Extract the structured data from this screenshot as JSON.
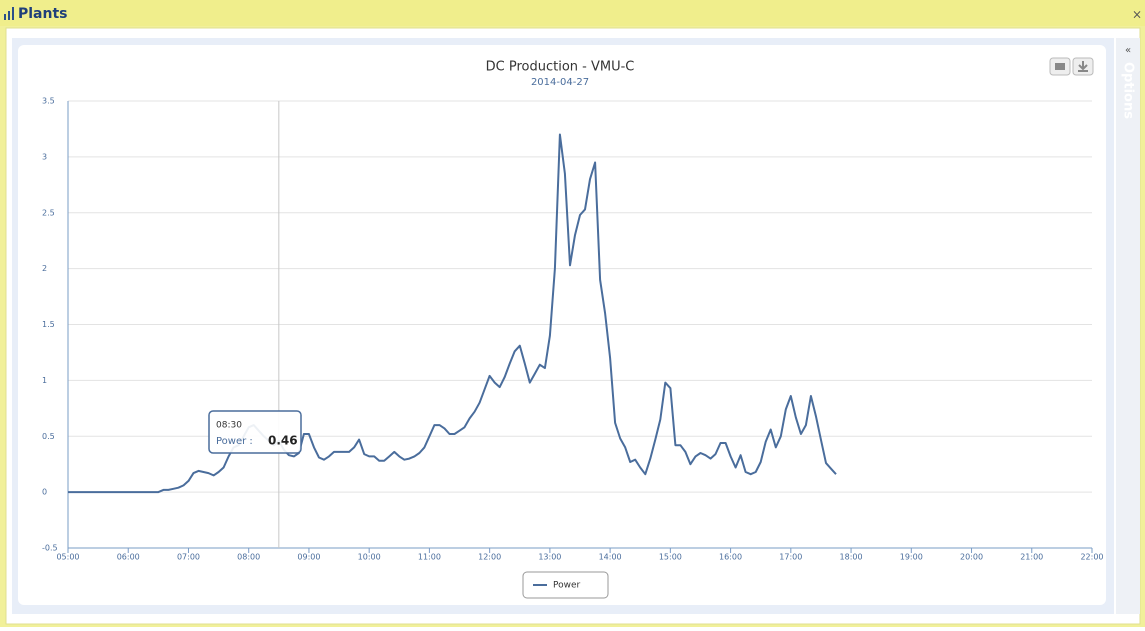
{
  "panel": {
    "title": "Plants",
    "close": "×"
  },
  "sidebar": {
    "label": "Options",
    "toggle": "«"
  },
  "chart_data": {
    "type": "line",
    "title": "DC Production - VMU-C",
    "subtitle": "2014-04-27",
    "x": [
      "05:00",
      "05:05",
      "05:10",
      "05:15",
      "05:20",
      "05:25",
      "05:30",
      "05:35",
      "05:40",
      "05:45",
      "05:50",
      "05:55",
      "06:00",
      "06:05",
      "06:10",
      "06:15",
      "06:20",
      "06:25",
      "06:30",
      "06:35",
      "06:40",
      "06:45",
      "06:50",
      "06:55",
      "07:00",
      "07:05",
      "07:10",
      "07:15",
      "07:20",
      "07:25",
      "07:30",
      "07:35",
      "07:40",
      "07:45",
      "07:50",
      "07:55",
      "08:00",
      "08:05",
      "08:10",
      "08:15",
      "08:20",
      "08:25",
      "08:30",
      "08:35",
      "08:40",
      "08:45",
      "08:50",
      "08:55",
      "09:00",
      "09:05",
      "09:10",
      "09:15",
      "09:20",
      "09:25",
      "09:30",
      "09:35",
      "09:40",
      "09:45",
      "09:50",
      "09:55",
      "10:00",
      "10:05",
      "10:10",
      "10:15",
      "10:20",
      "10:25",
      "10:30",
      "10:35",
      "10:40",
      "10:45",
      "10:50",
      "10:55",
      "11:00",
      "11:05",
      "11:10",
      "11:15",
      "11:20",
      "11:25",
      "11:30",
      "11:35",
      "11:40",
      "11:45",
      "11:50",
      "11:55",
      "12:00",
      "12:05",
      "12:10",
      "12:15",
      "12:20",
      "12:25",
      "12:30",
      "12:35",
      "12:40",
      "12:45",
      "12:50",
      "12:55",
      "13:00",
      "13:05",
      "13:10",
      "13:15",
      "13:20",
      "13:25",
      "13:30",
      "13:35",
      "13:40",
      "13:45",
      "13:50",
      "13:55",
      "14:00",
      "14:05",
      "14:10",
      "14:15",
      "14:20",
      "14:25",
      "14:30",
      "14:35",
      "14:40",
      "14:45",
      "14:50",
      "14:55",
      "15:00",
      "15:05",
      "15:10",
      "15:15",
      "15:20",
      "15:25",
      "15:30",
      "15:35",
      "15:40",
      "15:45",
      "15:50",
      "15:55",
      "16:00",
      "16:05",
      "16:10",
      "16:15",
      "16:20",
      "16:25",
      "16:30",
      "16:35",
      "16:40",
      "16:45",
      "16:50",
      "16:55",
      "17:00",
      "17:05",
      "17:10",
      "17:15",
      "17:20",
      "17:25",
      "17:30",
      "17:35",
      "17:40",
      "17:45"
    ],
    "series": [
      {
        "name": "Power",
        "color": "#4a6d9c",
        "values": [
          0,
          0,
          0,
          0,
          0,
          0,
          0,
          0,
          0,
          0,
          0,
          0,
          0,
          0,
          0,
          0,
          0,
          0,
          0,
          0.02,
          0.02,
          0.03,
          0.04,
          0.06,
          0.1,
          0.17,
          0.19,
          0.18,
          0.17,
          0.15,
          0.18,
          0.22,
          0.32,
          0.4,
          0.42,
          0.5,
          0.58,
          0.6,
          0.55,
          0.5,
          0.46,
          0.42,
          0.46,
          0.38,
          0.33,
          0.32,
          0.35,
          0.52,
          0.52,
          0.4,
          0.31,
          0.29,
          0.32,
          0.36,
          0.36,
          0.36,
          0.36,
          0.4,
          0.47,
          0.34,
          0.32,
          0.32,
          0.28,
          0.28,
          0.32,
          0.36,
          0.32,
          0.29,
          0.3,
          0.32,
          0.35,
          0.4,
          0.5,
          0.6,
          0.6,
          0.57,
          0.52,
          0.52,
          0.55,
          0.58,
          0.66,
          0.72,
          0.8,
          0.92,
          1.04,
          0.98,
          0.94,
          1.03,
          1.15,
          1.26,
          1.31,
          1.15,
          0.98,
          1.06,
          1.14,
          1.11,
          1.4,
          2.0,
          3.2,
          2.85,
          2.03,
          2.3,
          2.48,
          2.53,
          2.8,
          2.95,
          1.9,
          1.6,
          1.2,
          0.62,
          0.48,
          0.4,
          0.27,
          0.29,
          0.22,
          0.16,
          0.3,
          0.47,
          0.65,
          0.98,
          0.93,
          0.42,
          0.42,
          0.36,
          0.25,
          0.32,
          0.35,
          0.33,
          0.3,
          0.34,
          0.44,
          0.44,
          0.32,
          0.22,
          0.33,
          0.18,
          0.16,
          0.18,
          0.27,
          0.45,
          0.56,
          0.4,
          0.5,
          0.74,
          0.86,
          0.67,
          0.52,
          0.6,
          0.86,
          0.68,
          0.47,
          0.26,
          0.21,
          0.16
        ]
      }
    ],
    "xlim": [
      "05:00",
      "22:00"
    ],
    "xticks": [
      "05:00",
      "06:00",
      "07:00",
      "08:00",
      "09:00",
      "10:00",
      "11:00",
      "12:00",
      "13:00",
      "14:00",
      "15:00",
      "16:00",
      "17:00",
      "18:00",
      "19:00",
      "20:00",
      "21:00",
      "22:00"
    ],
    "ylim": [
      -0.5,
      3.5
    ],
    "yticks": [
      -0.5,
      0,
      0.5,
      1,
      1.5,
      2,
      2.5,
      3,
      3.5
    ],
    "grid": true,
    "legend": "bottom",
    "tooltip": {
      "x": "08:30",
      "series": "Power :",
      "value": 0.46
    }
  }
}
